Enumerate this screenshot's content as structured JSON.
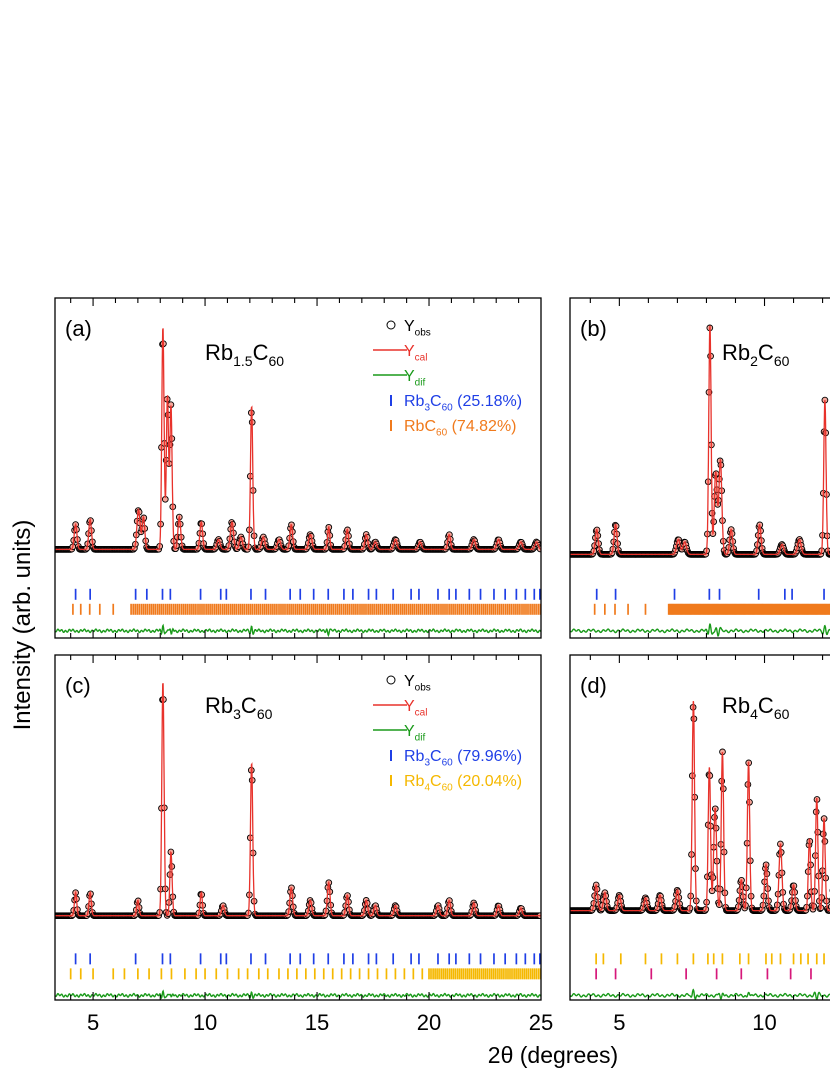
{
  "figure": {
    "ylabel": "Intensity (arb. units)",
    "xlabel_symbol": "2θ",
    "xlabel_rest": " (degrees)"
  },
  "legend_labels": {
    "obs": {
      "main": "Y",
      "sub": "obs"
    },
    "cal": {
      "main": "Y",
      "sub": "cal"
    },
    "dif": {
      "main": "Y",
      "sub": "dif"
    }
  },
  "colors": {
    "obs_fill": "#f6a79b",
    "obs_stroke": "#000000",
    "cal": "#e8322b",
    "dif": "#1a9a1a",
    "rb3c60": "#1f3fe6",
    "rbc60": "#f07a1c",
    "rb4c60": "#f5b800",
    "phase_magenta": "#d6187a"
  },
  "chart_data": [
    {
      "type": "scatter",
      "panel": "(a)",
      "compound": {
        "parts": [
          [
            "Rb",
            ""
          ],
          [
            "1.5",
            "sub"
          ],
          [
            "C",
            ""
          ],
          [
            "60",
            "sub"
          ]
        ]
      },
      "xlim": [
        3.3,
        25
      ],
      "xticks": [
        5,
        10,
        15,
        20,
        25
      ],
      "xticklabels": [
        "5",
        "10",
        "15",
        "20",
        "25"
      ],
      "background": 0.11,
      "peaks": [
        [
          4.22,
          0.1,
          0.06
        ],
        [
          4.87,
          0.12,
          0.06
        ],
        [
          7.03,
          0.16,
          0.07
        ],
        [
          7.25,
          0.13,
          0.06
        ],
        [
          8.12,
          0.9,
          0.05
        ],
        [
          8.32,
          0.62,
          0.05
        ],
        [
          8.48,
          0.58,
          0.05
        ],
        [
          8.85,
          0.13,
          0.06
        ],
        [
          9.83,
          0.11,
          0.06
        ],
        [
          10.6,
          0.04,
          0.07
        ],
        [
          11.2,
          0.11,
          0.07
        ],
        [
          11.6,
          0.05,
          0.07
        ],
        [
          12.08,
          0.58,
          0.05
        ],
        [
          12.6,
          0.05,
          0.07
        ],
        [
          13.3,
          0.04,
          0.07
        ],
        [
          13.85,
          0.1,
          0.06
        ],
        [
          14.7,
          0.06,
          0.07
        ],
        [
          15.52,
          0.09,
          0.05
        ],
        [
          16.35,
          0.08,
          0.06
        ],
        [
          17.2,
          0.06,
          0.06
        ],
        [
          17.6,
          0.03,
          0.07
        ],
        [
          18.5,
          0.04,
          0.07
        ],
        [
          19.6,
          0.03,
          0.07
        ],
        [
          20.9,
          0.06,
          0.06
        ],
        [
          22.0,
          0.04,
          0.07
        ],
        [
          23.1,
          0.04,
          0.07
        ],
        [
          24.1,
          0.03,
          0.07
        ],
        [
          24.8,
          0.03,
          0.07
        ]
      ],
      "diff_features": [
        [
          8.12,
          0.025
        ],
        [
          8.5,
          -0.02
        ],
        [
          12.08,
          0.018
        ],
        [
          15.5,
          -0.015
        ]
      ],
      "phases": [
        {
          "name": {
            "parts": [
              [
                "Rb",
                ""
              ],
              [
                "3",
                "sub"
              ],
              [
                "C",
                ""
              ],
              [
                "60",
                "sub"
              ],
              [
                " (25.18%)",
                ""
              ]
            ]
          },
          "color": "#1f3fe6",
          "ticks": [
            4.22,
            4.87,
            6.9,
            7.4,
            8.1,
            8.45,
            9.8,
            10.7,
            10.95,
            12.05,
            12.7,
            13.8,
            14.25,
            14.85,
            15.5,
            16.2,
            16.6,
            17.3,
            17.65,
            18.4,
            19.2,
            19.55,
            20.4,
            20.9,
            21.2,
            21.8,
            22.3,
            22.9,
            23.4,
            23.9,
            24.3,
            24.7,
            24.95
          ]
        },
        {
          "name": {
            "parts": [
              [
                "RbC",
                ""
              ],
              [
                "60",
                "sub"
              ],
              [
                " (74.82%)",
                ""
              ]
            ]
          },
          "color": "#f07a1c",
          "dense_from": 6.7,
          "ticks": [
            4.1,
            4.45,
            4.85,
            5.3,
            5.9
          ]
        }
      ]
    },
    {
      "type": "scatter",
      "panel": "(b)",
      "compound": {
        "parts": [
          [
            "Rb",
            ""
          ],
          [
            "2",
            "sub"
          ],
          [
            "C",
            ""
          ],
          [
            "60",
            "sub"
          ]
        ]
      },
      "xlim": [
        3.3,
        12.6
      ],
      "xticks": [
        5,
        10
      ],
      "xticklabels": [
        "5",
        "10"
      ],
      "background": 0.09,
      "peaks": [
        [
          4.22,
          0.1,
          0.05
        ],
        [
          4.87,
          0.12,
          0.05
        ],
        [
          7.03,
          0.06,
          0.06
        ],
        [
          7.25,
          0.05,
          0.06
        ],
        [
          8.12,
          0.92,
          0.04
        ],
        [
          8.32,
          0.33,
          0.05
        ],
        [
          8.48,
          0.38,
          0.05
        ],
        [
          8.85,
          0.1,
          0.05
        ],
        [
          9.83,
          0.12,
          0.05
        ],
        [
          10.6,
          0.04,
          0.06
        ],
        [
          11.2,
          0.06,
          0.06
        ],
        [
          12.08,
          0.62,
          0.04
        ]
      ],
      "diff_features": [
        [
          8.12,
          0.03
        ],
        [
          8.4,
          -0.02
        ],
        [
          12.08,
          0.02
        ]
      ],
      "phases": [
        {
          "color": "#1f3fe6",
          "ticks": [
            4.22,
            4.87,
            6.9,
            8.1,
            8.45,
            9.8,
            10.7,
            10.95,
            12.05
          ]
        },
        {
          "color": "#f07a1c",
          "dense_from": 6.7,
          "ticks": [
            4.15,
            4.5,
            4.85,
            5.3,
            5.9
          ]
        }
      ]
    },
    {
      "type": "scatter",
      "panel": "(c)",
      "compound": {
        "parts": [
          [
            "Rb",
            ""
          ],
          [
            "3",
            "sub"
          ],
          [
            "C",
            ""
          ],
          [
            "60",
            "sub"
          ]
        ]
      },
      "xlim": [
        3.3,
        25
      ],
      "xticks": [
        5,
        10,
        15,
        20,
        25
      ],
      "xticklabels": [
        "5",
        "10",
        "15",
        "20",
        "25"
      ],
      "background": 0.1,
      "peaks": [
        [
          4.22,
          0.09,
          0.05
        ],
        [
          4.87,
          0.09,
          0.05
        ],
        [
          7.0,
          0.06,
          0.05
        ],
        [
          8.12,
          0.92,
          0.05
        ],
        [
          8.48,
          0.25,
          0.05
        ],
        [
          9.83,
          0.09,
          0.05
        ],
        [
          10.8,
          0.04,
          0.06
        ],
        [
          12.08,
          0.6,
          0.05
        ],
        [
          13.85,
          0.11,
          0.06
        ],
        [
          14.7,
          0.06,
          0.06
        ],
        [
          15.52,
          0.13,
          0.06
        ],
        [
          16.35,
          0.08,
          0.06
        ],
        [
          17.2,
          0.06,
          0.06
        ],
        [
          17.6,
          0.04,
          0.06
        ],
        [
          18.5,
          0.04,
          0.06
        ],
        [
          20.4,
          0.04,
          0.06
        ],
        [
          20.9,
          0.06,
          0.06
        ],
        [
          22.0,
          0.05,
          0.06
        ],
        [
          23.1,
          0.04,
          0.06
        ],
        [
          24.1,
          0.03,
          0.06
        ]
      ],
      "diff_features": [
        [
          8.12,
          0.02
        ],
        [
          8.5,
          -0.012
        ],
        [
          12.08,
          0.012
        ]
      ],
      "phases": [
        {
          "name": {
            "parts": [
              [
                "Rb",
                ""
              ],
              [
                "3",
                "sub"
              ],
              [
                "C",
                ""
              ],
              [
                "60",
                "sub"
              ],
              [
                " (79.96%)",
                ""
              ]
            ]
          },
          "color": "#1f3fe6",
          "ticks": [
            4.22,
            4.87,
            6.9,
            8.1,
            8.45,
            9.8,
            10.7,
            10.95,
            12.05,
            12.7,
            13.8,
            14.25,
            14.85,
            15.5,
            16.2,
            16.6,
            17.3,
            17.65,
            18.4,
            19.2,
            19.55,
            20.4,
            20.9,
            21.2,
            21.8,
            22.3,
            22.9,
            23.4,
            23.9,
            24.3,
            24.7,
            24.95
          ]
        },
        {
          "name": {
            "parts": [
              [
                "Rb",
                ""
              ],
              [
                "4",
                "sub"
              ],
              [
                "C",
                ""
              ],
              [
                "60",
                "sub"
              ],
              [
                " (20.04%)",
                ""
              ]
            ]
          },
          "color": "#f5b800",
          "dense_from": 20.0,
          "ticks": [
            4.0,
            4.45,
            5.0,
            5.9,
            6.4,
            7.0,
            7.5,
            8.05,
            8.5,
            9.1,
            9.6,
            10.0,
            10.5,
            11.0,
            11.5,
            11.9,
            12.4,
            12.8,
            13.3,
            13.7,
            14.1,
            14.5,
            14.9,
            15.3,
            15.7,
            16.1,
            16.5,
            16.9,
            17.3,
            17.7,
            18.1,
            18.5,
            18.9,
            19.3,
            19.7
          ]
        }
      ]
    },
    {
      "type": "scatter",
      "panel": "(d)",
      "compound": {
        "parts": [
          [
            "Rb",
            ""
          ],
          [
            "4",
            "sub"
          ],
          [
            "C",
            ""
          ],
          [
            "60",
            "sub"
          ]
        ]
      },
      "xlim": [
        3.3,
        12.6
      ],
      "xticks": [
        5,
        10
      ],
      "xticklabels": [
        "5",
        "10"
      ],
      "background": 0.12,
      "peaks": [
        [
          4.2,
          0.1,
          0.05
        ],
        [
          4.5,
          0.07,
          0.05
        ],
        [
          5.0,
          0.06,
          0.05
        ],
        [
          5.9,
          0.05,
          0.05
        ],
        [
          6.4,
          0.06,
          0.05
        ],
        [
          7.0,
          0.08,
          0.05
        ],
        [
          7.55,
          0.82,
          0.04
        ],
        [
          8.1,
          0.56,
          0.04
        ],
        [
          8.3,
          0.4,
          0.05
        ],
        [
          8.55,
          0.62,
          0.04
        ],
        [
          9.2,
          0.12,
          0.05
        ],
        [
          9.45,
          0.58,
          0.04
        ],
        [
          10.05,
          0.18,
          0.05
        ],
        [
          10.55,
          0.26,
          0.05
        ],
        [
          11.0,
          0.1,
          0.05
        ],
        [
          11.55,
          0.28,
          0.04
        ],
        [
          11.8,
          0.44,
          0.04
        ],
        [
          12.05,
          0.36,
          0.04
        ],
        [
          12.4,
          0.12,
          0.05
        ]
      ],
      "diff_features": [
        [
          7.55,
          0.025
        ],
        [
          8.5,
          -0.02
        ],
        [
          9.45,
          0.015
        ],
        [
          11.8,
          -0.015
        ]
      ],
      "phases": [
        {
          "color": "#f5b800",
          "ticks": [
            4.2,
            4.45,
            5.05,
            5.9,
            6.45,
            7.0,
            7.55,
            8.05,
            8.25,
            8.55,
            9.15,
            9.45,
            10.05,
            10.25,
            10.55,
            11.0,
            11.25,
            11.5,
            11.8,
            12.05,
            12.3
          ]
        },
        {
          "color": "#d6187a",
          "ticks": [
            4.2,
            4.87,
            6.1,
            7.3,
            8.35,
            9.2,
            10.1,
            10.9,
            11.6,
            12.3
          ]
        }
      ]
    }
  ]
}
